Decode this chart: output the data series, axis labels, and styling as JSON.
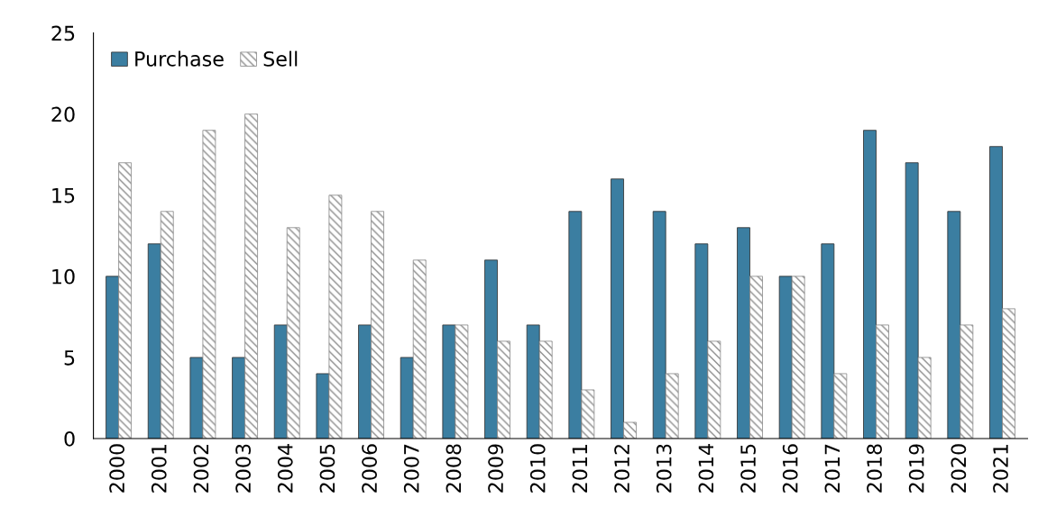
{
  "chart_data": {
    "type": "bar",
    "categories": [
      "2000",
      "2001",
      "2002",
      "2003",
      "2004",
      "2005",
      "2006",
      "2007",
      "2008",
      "2009",
      "2010",
      "2011",
      "2012",
      "2013",
      "2014",
      "2015",
      "2016",
      "2017",
      "2018",
      "2019",
      "2020",
      "2021"
    ],
    "series": [
      {
        "name": "Purchase",
        "color": "#3b7ea1",
        "values": [
          10,
          12,
          5,
          5,
          7,
          4,
          7,
          5,
          7,
          11,
          7,
          14,
          16,
          14,
          12,
          13,
          10,
          12,
          19,
          17,
          14,
          18
        ]
      },
      {
        "name": "Sell",
        "color": "#8c8c8c",
        "values": [
          17,
          14,
          19,
          20,
          13,
          15,
          14,
          11,
          7,
          6,
          6,
          3,
          1,
          4,
          6,
          10,
          10,
          4,
          7,
          5,
          7,
          8
        ]
      }
    ],
    "ylim": [
      0,
      25
    ],
    "yticks": [
      0,
      5,
      10,
      15,
      20,
      25
    ],
    "grid": false,
    "legend": "top left"
  }
}
